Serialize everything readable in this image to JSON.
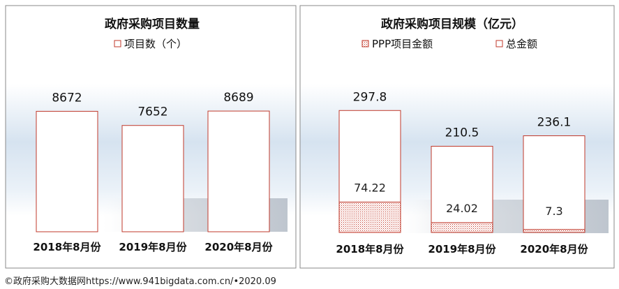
{
  "chart_data": [
    {
      "type": "bar",
      "title": "政府采购项目数量",
      "legend": [
        "项目数（个）"
      ],
      "categories": [
        "2018年8月份",
        "2019年8月份",
        "2020年8月份"
      ],
      "series": [
        {
          "name": "项目数（个）",
          "values": [
            8672,
            7652,
            8689
          ]
        }
      ],
      "ylim": [
        0,
        10000
      ],
      "grid": false,
      "legend_position": "top"
    },
    {
      "type": "bar",
      "title": "政府采购项目规模（亿元）",
      "legend": [
        "PPP项目金额",
        "总金额"
      ],
      "categories": [
        "2018年8月份",
        "2019年8月份",
        "2020年8月份"
      ],
      "series": [
        {
          "name": "PPP项目金额",
          "values": [
            74.22,
            24.02,
            7.3
          ]
        },
        {
          "name": "总金额",
          "values": [
            297.8,
            210.5,
            236.1
          ]
        }
      ],
      "ylim": [
        0,
        350
      ],
      "grid": false,
      "legend_position": "top"
    }
  ],
  "colors": {
    "bar_border": "#c0392b",
    "bar_fill": "#ffffff",
    "hatch": "#c0392b",
    "panel_border": "#8a8a8a"
  },
  "source": "©政府采购大数据网https://www.941bigdata.com.cn/•2020.09"
}
